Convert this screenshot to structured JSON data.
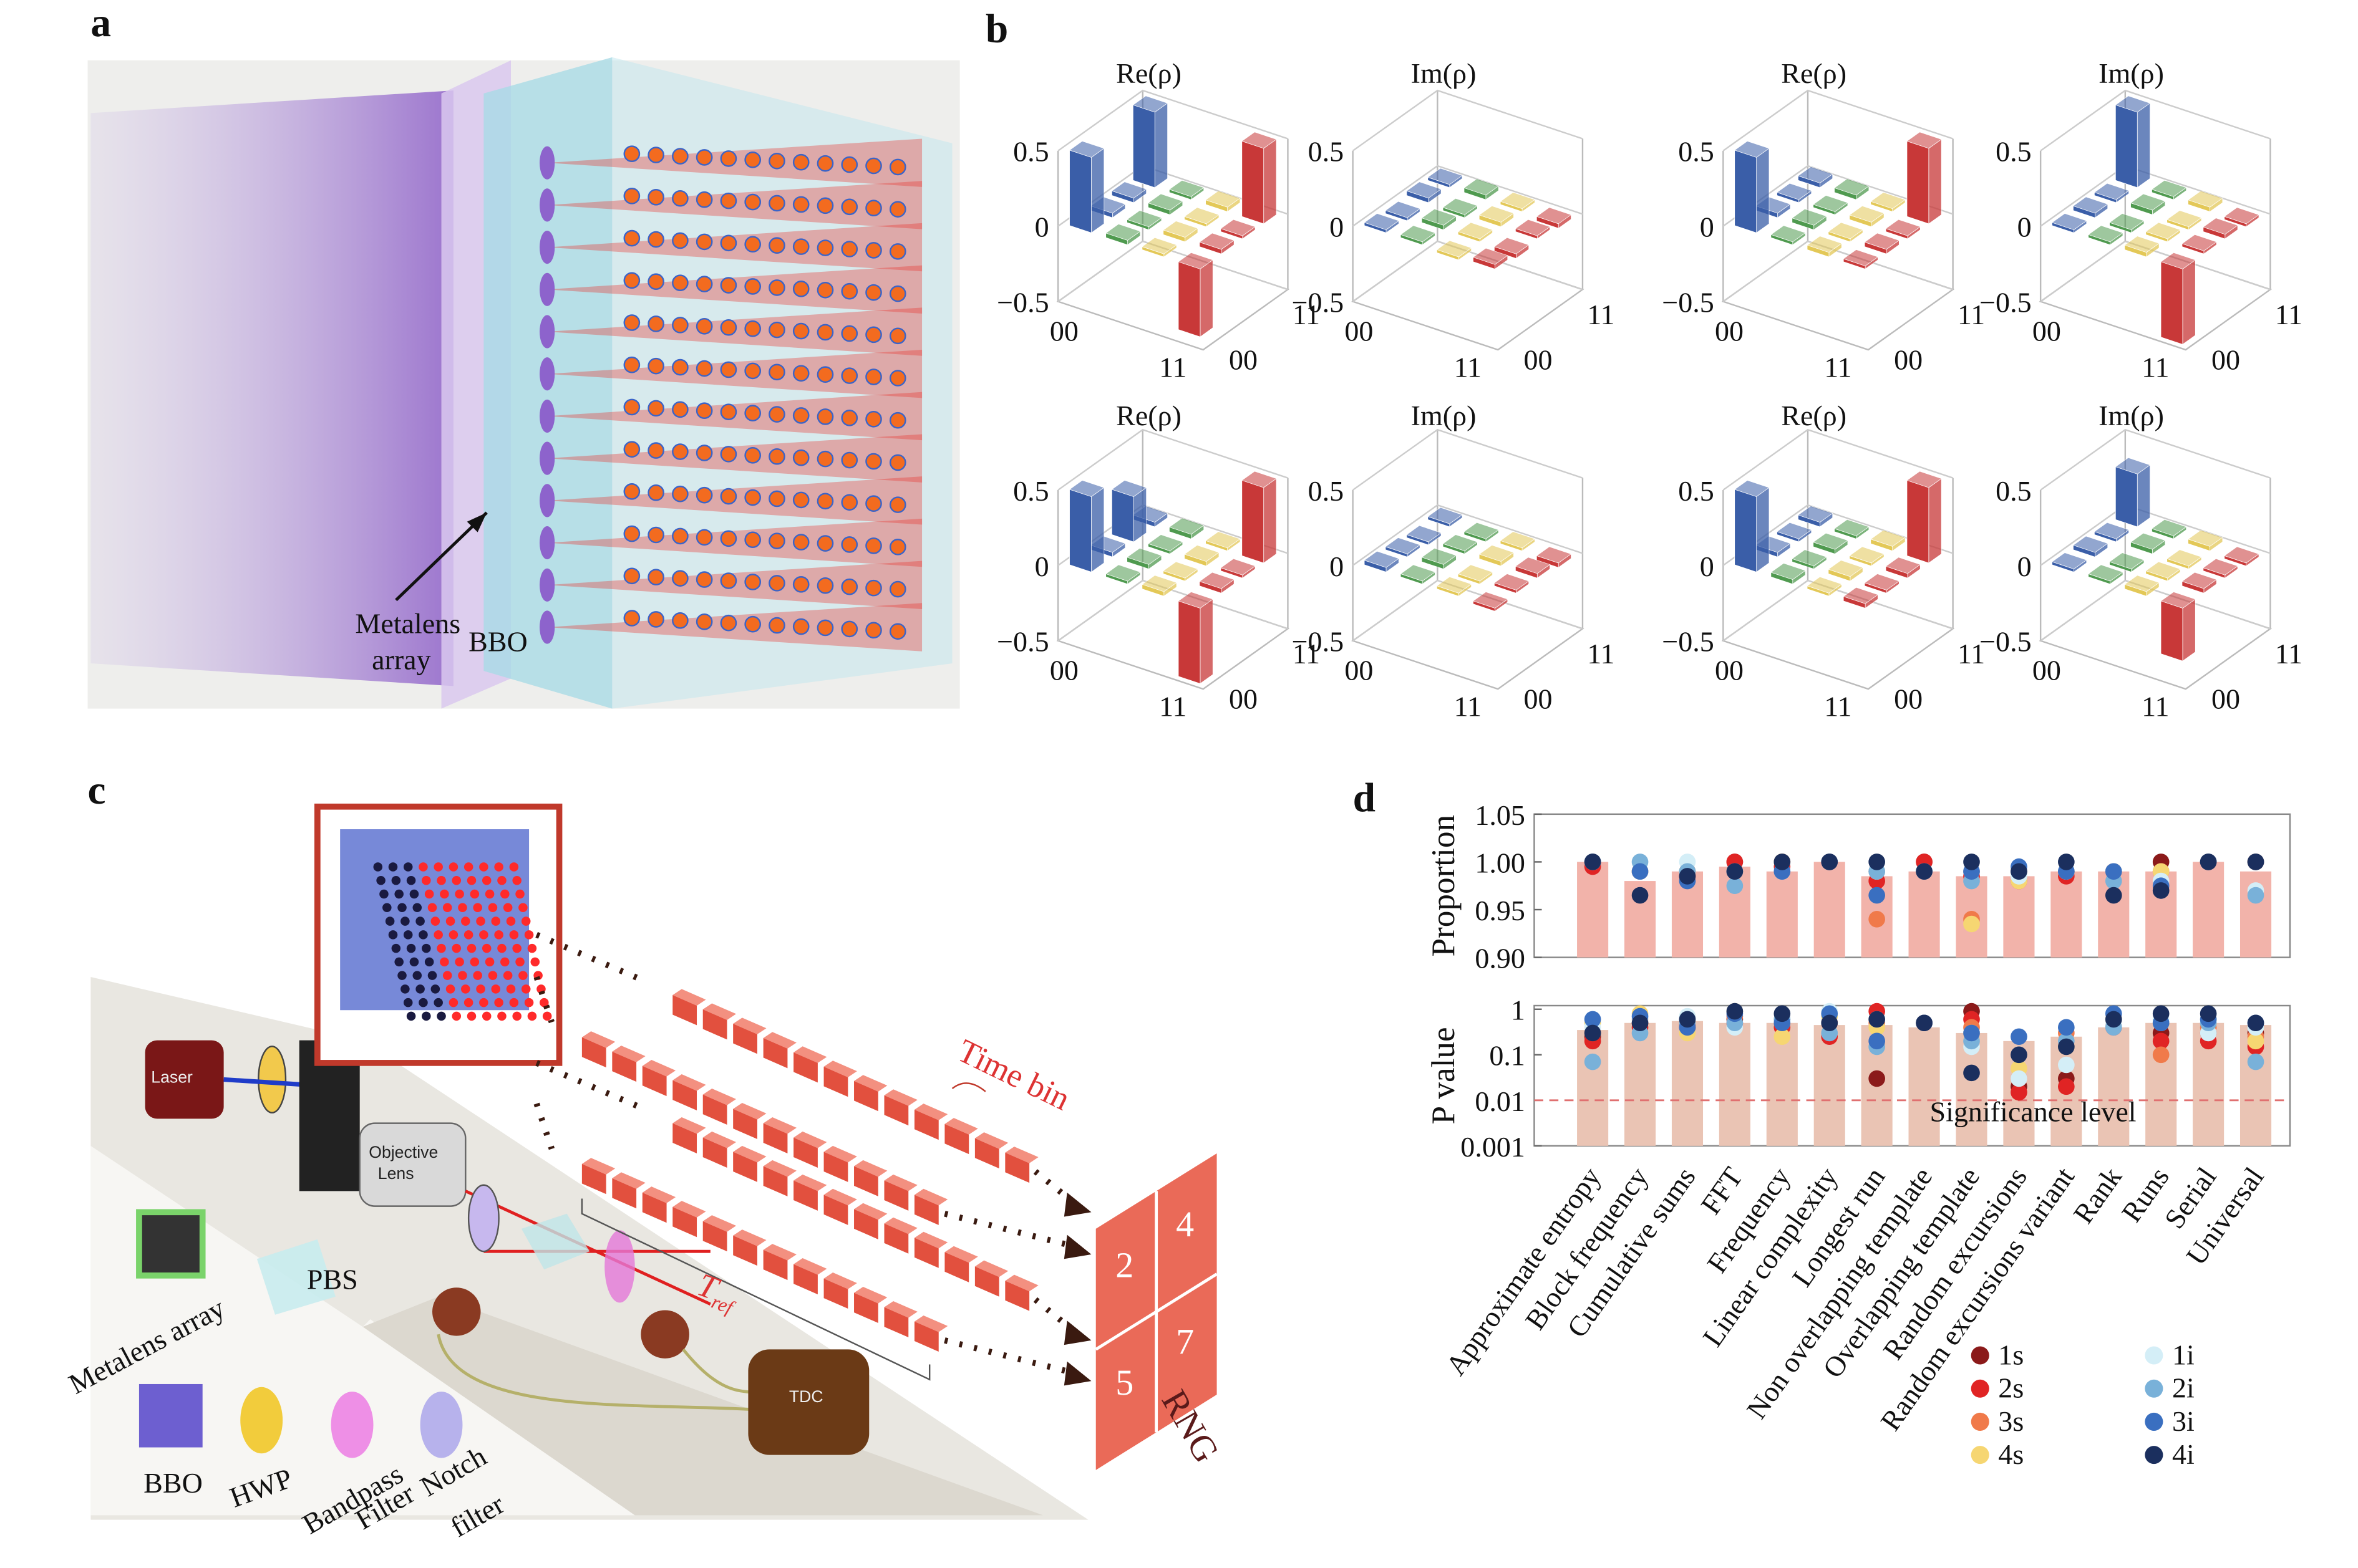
{
  "panel_labels": {
    "a": "a",
    "b": "b",
    "c": "c",
    "d": "d"
  },
  "panel_a": {
    "metalens": [
      "Metalens",
      "array"
    ],
    "bbo": "BBO"
  },
  "panel_b": {
    "zlim": [
      -0.5,
      0.5
    ],
    "zticks": [
      0.5,
      0,
      {
        "value": -0.5,
        "label": "−0.5"
      }
    ],
    "basis_labels": [
      "00",
      "11"
    ],
    "row_colors": [
      "#3a5ea8",
      "#4f9a4f",
      "#e3c857",
      "#c83838"
    ],
    "plots": [
      {
        "title": "Re(ρ)",
        "values": [
          [
            0.5,
            0.03,
            0.03,
            0.5
          ],
          [
            0.03,
            0.02,
            0.03,
            0.02
          ],
          [
            0.02,
            0.03,
            0.02,
            0.03
          ],
          [
            -0.45,
            0.03,
            0.02,
            0.5
          ]
        ]
      },
      {
        "title": "Im(ρ)",
        "values": [
          [
            0.02,
            -0.02,
            0.03,
            0.02
          ],
          [
            0.02,
            0.03,
            -0.02,
            0.03
          ],
          [
            -0.02,
            0.02,
            0.03,
            0.02
          ],
          [
            0.03,
            -0.03,
            0.02,
            -0.03
          ]
        ]
      },
      {
        "title": "Re(ρ)",
        "values": [
          [
            0.5,
            0.03,
            0.02,
            0.03
          ],
          [
            0.02,
            0.03,
            0.02,
            0.03
          ],
          [
            0.03,
            0.02,
            0.03,
            0.02
          ],
          [
            0.02,
            0.03,
            0.02,
            0.5
          ]
        ]
      },
      {
        "title": "Im(ρ)",
        "values": [
          [
            0.02,
            0.03,
            0.02,
            0.5
          ],
          [
            0.02,
            -0.02,
            0.03,
            0.02
          ],
          [
            0.03,
            0.02,
            -0.02,
            0.03
          ],
          [
            -0.5,
            0.02,
            0.03,
            -0.02
          ]
        ]
      },
      {
        "title": "Re(ρ)",
        "values": [
          [
            0.5,
            0.03,
            0.3,
            0.03
          ],
          [
            0.02,
            0.03,
            0.02,
            0.03
          ],
          [
            0.03,
            0.02,
            0.03,
            0.02
          ],
          [
            -0.5,
            0.03,
            0.02,
            0.5
          ]
        ]
      },
      {
        "title": "Im(ρ)",
        "values": [
          [
            0.03,
            0.02,
            -0.02,
            0.02
          ],
          [
            0.02,
            0.03,
            0.02,
            -0.02
          ],
          [
            0.02,
            -0.02,
            0.03,
            0.02
          ],
          [
            -0.02,
            0.02,
            0.03,
            -0.03
          ]
        ]
      },
      {
        "title": "Re(ρ)",
        "values": [
          [
            0.5,
            0.03,
            0.02,
            0.03
          ],
          [
            0.03,
            0.02,
            0.03,
            0.02
          ],
          [
            0.02,
            0.03,
            0.02,
            0.03
          ],
          [
            0.03,
            0.02,
            0.03,
            0.5
          ]
        ]
      },
      {
        "title": "Im(ρ)",
        "values": [
          [
            0.02,
            0.03,
            0.02,
            0.35
          ],
          [
            0.02,
            -0.02,
            0.03,
            0.02
          ],
          [
            0.03,
            0.02,
            -0.02,
            0.03
          ],
          [
            -0.35,
            0.03,
            0.02,
            -0.02
          ]
        ]
      }
    ]
  },
  "panel_c": {
    "laser": "Laser",
    "objective": [
      "Objective",
      "Lens"
    ],
    "tdc": "TDC",
    "metalens": "Metalens array",
    "pbs": "PBS",
    "bbo": "BBO",
    "hwp": "HWP",
    "bandpass": [
      "Bandpass",
      "Filter"
    ],
    "notch": [
      "Notch",
      "filter"
    ],
    "time_bin": "Time bin",
    "t_ref": {
      "main": "T",
      "sub": "ref"
    },
    "rng": "RNG",
    "rng_digits": [
      "2",
      "4",
      "5",
      "7"
    ]
  },
  "chart_data": [
    {
      "type": "bar",
      "ylabel": "Proportion",
      "bar_color": "#f2b3aa",
      "values": [
        1.0,
        0.98,
        0.99,
        0.995,
        0.99,
        1.0,
        0.985,
        0.99,
        0.985,
        0.985,
        0.99,
        0.99,
        0.99,
        1.0,
        0.99
      ],
      "ylim": [
        0.9,
        1.05
      ],
      "yticks": [
        {
          "value": 0.9,
          "label": "0.90"
        },
        0.95,
        {
          "value": 1,
          "label": "1.00"
        },
        1.05
      ],
      "series": [
        {
          "color": "#8b1a1a",
          "values": [
            1,
            0.99,
            0.99,
            1,
            1,
            1,
            0.99,
            1,
            0.99,
            0.99,
            0.99,
            0.99,
            1,
            1,
            1
          ]
        },
        {
          "color": "#e02424",
          "values": [
            0.995,
            0.99,
            0.985,
            1,
            0.995,
            1,
            0.98,
            1,
            0.985,
            0.98,
            0.985,
            0.99,
            0.99,
            1,
            1
          ]
        },
        {
          "color": "#f07a4a",
          "values": [
            1,
            0.99,
            0.99,
            0.99,
            1,
            1,
            0.94,
            0.99,
            0.94,
            0.98,
            0.99,
            0.99,
            0.99,
            1,
            1
          ]
        },
        {
          "color": "#f6d672",
          "values": [
            1,
            0.99,
            0.99,
            0.99,
            1,
            1,
            0.99,
            0.99,
            0.935,
            0.98,
            0.99,
            0.99,
            0.99,
            1,
            1
          ]
        },
        {
          "color": "#d4eef7",
          "values": [
            1,
            0.99,
            1,
            0.99,
            0.99,
            1,
            0.99,
            0.99,
            0.99,
            0.985,
            0.99,
            0.99,
            0.98,
            1,
            0.97
          ]
        },
        {
          "color": "#79b1d9",
          "values": [
            1,
            1,
            0.99,
            0.975,
            0.99,
            1,
            0.99,
            0.99,
            0.98,
            0.99,
            0.99,
            0.98,
            0.97,
            1,
            0.965
          ]
        },
        {
          "color": "#3a6fc0",
          "values": [
            1,
            0.99,
            0.98,
            0.99,
            0.99,
            1,
            0.965,
            0.99,
            0.99,
            0.995,
            0.99,
            0.99,
            0.975,
            1,
            1
          ]
        },
        {
          "color": "#1b2f5e",
          "values": [
            1,
            0.965,
            0.985,
            0.99,
            1,
            1,
            1,
            0.99,
            1,
            0.99,
            1,
            0.965,
            0.97,
            1,
            1
          ]
        }
      ]
    },
    {
      "type": "bar",
      "ylabel": "P value",
      "log_scale": true,
      "bar_color": "#eac4b4",
      "legend": true,
      "categories": [
        "Approximate entropy",
        "Block frequency",
        "Cumulative sums",
        "FFT",
        "Frequency",
        "Linear complexity",
        "Longest run",
        "Non overlapping template",
        "Overlapping template",
        "Random excursions",
        "Random excursions variant",
        "Rank",
        "Runs",
        "Serial",
        "Universal"
      ],
      "values": [
        0.35,
        0.5,
        0.55,
        0.5,
        0.5,
        0.45,
        0.45,
        0.4,
        0.3,
        0.2,
        0.25,
        0.4,
        0.5,
        0.5,
        0.45
      ],
      "ylim": [
        0.001,
        1.2
      ],
      "yticks": [
        0.001,
        0.01,
        0.1,
        1
      ],
      "threshold": {
        "value": 0.01,
        "label": "Significance level",
        "color": "#e07070"
      },
      "series": [
        {
          "name": "1s",
          "color": "#8b1a1a",
          "values": [
            0.25,
            0.5,
            0.4,
            0.6,
            0.6,
            0.5,
            0.03,
            0.5,
            0.9,
            0.02,
            0.03,
            0.5,
            0.3,
            0.3,
            0.3
          ]
        },
        {
          "name": "2s",
          "color": "#e02424",
          "values": [
            0.2,
            0.4,
            0.45,
            0.5,
            0.4,
            0.25,
            0.9,
            0.5,
            0.6,
            0.015,
            0.02,
            0.4,
            0.2,
            0.2,
            0.15
          ]
        },
        {
          "name": "3s",
          "color": "#f07a4a",
          "values": [
            0.3,
            0.6,
            0.5,
            0.7,
            0.5,
            0.5,
            0.5,
            0.5,
            0.4,
            0.03,
            0.3,
            0.5,
            0.1,
            0.4,
            0.25
          ]
        },
        {
          "name": "4s",
          "color": "#f6d672",
          "values": [
            0.5,
            0.8,
            0.3,
            0.9,
            0.25,
            0.7,
            0.4,
            0.5,
            0.3,
            0.05,
            0.15,
            0.6,
            0.5,
            0.6,
            0.2
          ]
        },
        {
          "name": "1i",
          "color": "#d4eef7",
          "values": [
            0.4,
            0.6,
            0.7,
            0.4,
            0.6,
            0.9,
            0.6,
            0.5,
            0.15,
            0.03,
            0.06,
            0.5,
            0.6,
            0.3,
            0.4
          ]
        },
        {
          "name": "2i",
          "color": "#79b1d9",
          "values": [
            0.07,
            0.3,
            0.5,
            0.5,
            0.6,
            0.3,
            0.15,
            0.5,
            0.2,
            0.1,
            0.2,
            0.4,
            0.5,
            0.5,
            0.07
          ]
        },
        {
          "name": "3i",
          "color": "#3a6fc0",
          "values": [
            0.6,
            0.7,
            0.4,
            0.8,
            0.5,
            0.8,
            0.2,
            0.5,
            0.3,
            0.25,
            0.4,
            0.8,
            0.5,
            0.6,
            0.5
          ]
        },
        {
          "name": "4i",
          "color": "#1b2f5e",
          "values": [
            0.3,
            0.5,
            0.6,
            0.9,
            0.8,
            0.5,
            0.6,
            0.5,
            0.04,
            0.1,
            0.15,
            0.6,
            0.8,
            0.8,
            0.5
          ]
        }
      ]
    }
  ]
}
